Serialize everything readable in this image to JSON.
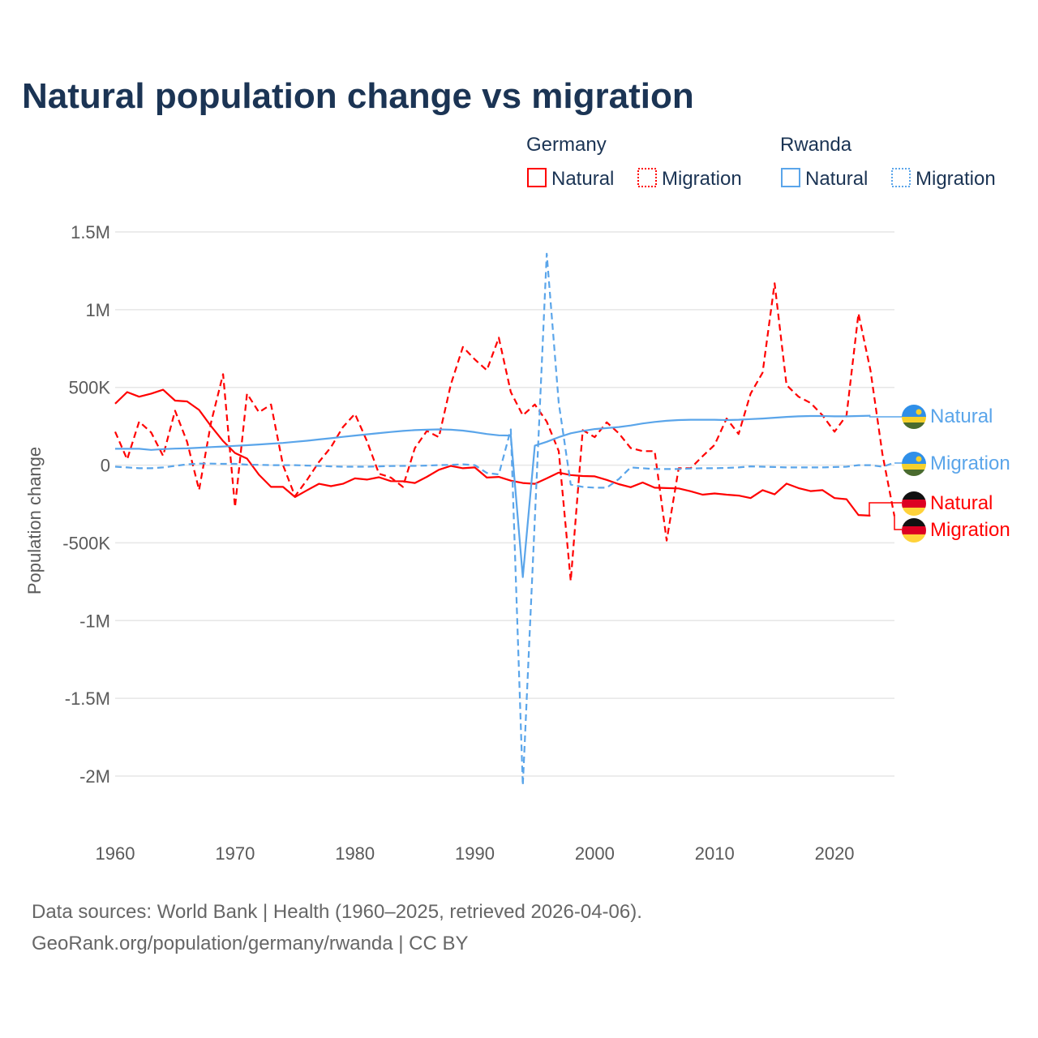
{
  "chart_data": {
    "type": "line",
    "title": "Natural population change vs migration",
    "ylabel": "Population change",
    "xlabel": "",
    "xlim": [
      1960,
      2025
    ],
    "ylim": [
      -2000000,
      1500000
    ],
    "x_ticks": [
      1960,
      1970,
      1980,
      1990,
      2000,
      2010,
      2020
    ],
    "y_ticks": [
      {
        "value": 1500000,
        "label": "1.5M"
      },
      {
        "value": 1000000,
        "label": "1M"
      },
      {
        "value": 500000,
        "label": "500K"
      },
      {
        "value": 0,
        "label": "0"
      },
      {
        "value": -500000,
        "label": "-500K"
      },
      {
        "value": -1000000,
        "label": "-1M"
      },
      {
        "value": -1500000,
        "label": "-1.5M"
      },
      {
        "value": -2000000,
        "label": "-2M"
      }
    ],
    "grid": true,
    "legend": {
      "placement": "top-right",
      "groups": [
        {
          "country": "Germany",
          "items": [
            "Natural",
            "Migration"
          ]
        },
        {
          "country": "Rwanda",
          "items": [
            "Natural",
            "Migration"
          ]
        }
      ]
    },
    "series": [
      {
        "name": "Germany Natural",
        "country": "Germany",
        "kind": "Natural",
        "color": "#ff0000",
        "dashed": false,
        "start_year": 1960,
        "values_k": [
          395,
          470,
          440,
          460,
          485,
          415,
          410,
          355,
          250,
          155,
          78,
          42,
          -62,
          -140,
          -140,
          -205,
          -162,
          -120,
          -135,
          -120,
          -85,
          -93,
          -78,
          -103,
          -104,
          -115,
          -75,
          -30,
          -5,
          -20,
          -15,
          -80,
          -76,
          -100,
          -115,
          -120,
          -85,
          -48,
          -64,
          -70,
          -72,
          -95,
          -122,
          -142,
          -112,
          -145,
          -148,
          -150,
          -168,
          -190,
          -182,
          -190,
          -196,
          -212,
          -161,
          -188,
          -119,
          -148,
          -167,
          -161,
          -212,
          -219,
          -321,
          -325
        ]
      },
      {
        "name": "Germany Migration",
        "country": "Germany",
        "kind": "Migration",
        "color": "#ff0000",
        "dashed": true,
        "start_year": 1960,
        "values_k": [
          215,
          37,
          280,
          210,
          60,
          350,
          150,
          -160,
          275,
          585,
          -270,
          460,
          340,
          390,
          0,
          -200,
          -95,
          20,
          115,
          245,
          330,
          155,
          -55,
          -80,
          -140,
          110,
          220,
          180,
          520,
          760,
          680,
          610,
          820,
          470,
          320,
          390,
          280,
          90,
          -745,
          225,
          180,
          275,
          205,
          110,
          90,
          90,
          -485,
          -20,
          -20,
          57,
          130,
          300,
          200,
          460,
          595,
          1170,
          515,
          440,
          400,
          320,
          215,
          320,
          975,
          610,
          70,
          -330
        ]
      },
      {
        "name": "Rwanda Natural",
        "country": "Rwanda",
        "kind": "Natural",
        "color": "#5aa5ea",
        "dashed": false,
        "start_year": 1960,
        "values_k": [
          105,
          105,
          105,
          98,
          103,
          106,
          108,
          112,
          116,
          120,
          124,
          128,
          133,
          138,
          143,
          150,
          157,
          165,
          173,
          182,
          190,
          198,
          206,
          213,
          220,
          225,
          228,
          230,
          228,
          222,
          212,
          200,
          192,
          190,
          -720,
          125,
          150,
          180,
          205,
          220,
          232,
          238,
          245,
          255,
          268,
          278,
          285,
          290,
          292,
          292,
          292,
          290,
          292,
          296,
          300,
          305,
          310,
          314,
          316,
          316,
          314,
          314,
          316,
          318
        ]
      },
      {
        "name": "Rwanda Migration",
        "country": "Rwanda",
        "kind": "Migration",
        "color": "#5aa5ea",
        "dashed": true,
        "start_year": 1960,
        "values_k": [
          -10,
          -15,
          -20,
          -20,
          -15,
          -5,
          5,
          10,
          10,
          8,
          8,
          3,
          2,
          0,
          0,
          0,
          -3,
          -5,
          -8,
          -10,
          -10,
          -10,
          -8,
          -6,
          -5,
          -5,
          -3,
          0,
          2,
          5,
          0,
          -50,
          -60,
          230,
          -2060,
          -350,
          1360,
          400,
          -125,
          -140,
          -145,
          -145,
          -90,
          -15,
          -20,
          -25,
          -25,
          -25,
          -22,
          -20,
          -20,
          -18,
          -15,
          -8,
          -10,
          -12,
          -15,
          -15,
          -15,
          -15,
          -12,
          -10,
          0,
          0,
          -10,
          15
        ]
      }
    ],
    "end_labels": [
      {
        "text": "Natural",
        "country": "Rwanda"
      },
      {
        "text": "Migration",
        "country": "Rwanda"
      },
      {
        "text": "Natural",
        "country": "Germany"
      },
      {
        "text": "Migration",
        "country": "Germany"
      }
    ]
  },
  "footer": {
    "line1": "Data sources: World Bank | Health (1960–2025, retrieved 2026-04-06).",
    "line2": "GeoRank.org/population/germany/rwanda | CC BY"
  }
}
